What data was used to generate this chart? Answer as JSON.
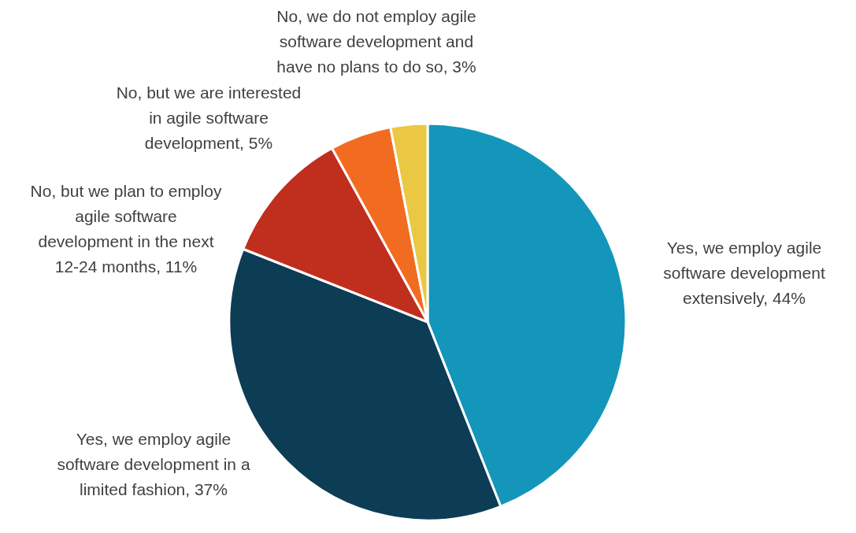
{
  "chart_data": {
    "type": "pie",
    "categories": [
      "Yes, we employ agile software development extensively",
      "Yes, we employ agile software development in a limited fashion",
      "No, but we plan to employ agile software development in the next 12-24 months",
      "No, but we are interested in agile software development",
      "No, we do not employ agile software development and have no plans to do so"
    ],
    "values": [
      44,
      37,
      11,
      5,
      3
    ],
    "value_labels": [
      "44%",
      "37%",
      "11%",
      "5%",
      "3%"
    ],
    "colors": [
      "#1496bb",
      "#0d3c55",
      "#c02e1d",
      "#f16c20",
      "#ebc844"
    ]
  }
}
